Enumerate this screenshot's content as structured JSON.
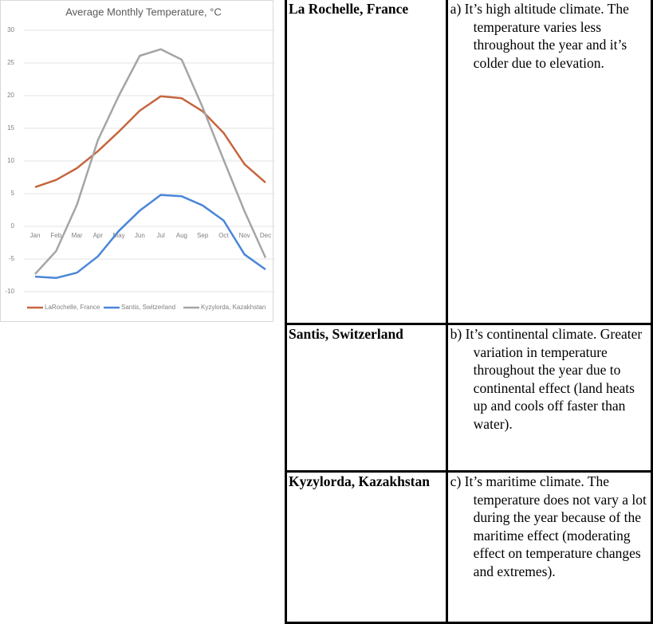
{
  "chart_data": {
    "type": "line",
    "title": "Average Monthly Temperature, °C",
    "categories": [
      "Jan",
      "Feb",
      "Mar",
      "Apr",
      "May",
      "Jun",
      "Jul",
      "Aug",
      "Sep",
      "Oct",
      "Nov",
      "Dec"
    ],
    "series": [
      {
        "name": "LaRochelle, France",
        "color": "#c5663f",
        "values": [
          6.0,
          7.1,
          8.9,
          11.5,
          14.5,
          17.7,
          19.9,
          19.6,
          17.6,
          14.3,
          9.5,
          6.7
        ]
      },
      {
        "name": "Santis, Switzerland",
        "color": "#4a86d8",
        "values": [
          -7.7,
          -7.9,
          -7.1,
          -4.6,
          -0.7,
          2.4,
          4.8,
          4.6,
          3.2,
          0.9,
          -4.3,
          -6.6
        ]
      },
      {
        "name": "Kyzylorda, Kazakhstan",
        "color": "#a5a5a5",
        "values": [
          -7.3,
          -3.8,
          3.3,
          13.2,
          20.0,
          26.1,
          27.1,
          25.5,
          18.2,
          10.2,
          2.3,
          -4.8
        ]
      }
    ],
    "ylim": [
      -10,
      30
    ],
    "yticks": [
      -10,
      -5,
      0,
      5,
      10,
      15,
      20,
      25,
      30
    ],
    "grid": true,
    "legend": "bottom"
  },
  "table": {
    "rows": [
      [
        "La Rochelle, France",
        "a) It’s high altitude climate. The temperature varies less throughout the year and it’s colder due to elevation."
      ],
      [
        "Santis, Switzerland",
        "b) It’s continental climate. Greater variation in temperature throughout the year due to continental effect (land heats up and cools off faster than water)."
      ],
      [
        "Kyzylorda, Kazakhstan",
        "c) It’s maritime climate. The temperature does not vary a lot during the year because of the maritime effect (moderating effect on temperature changes and extremes)."
      ]
    ]
  }
}
